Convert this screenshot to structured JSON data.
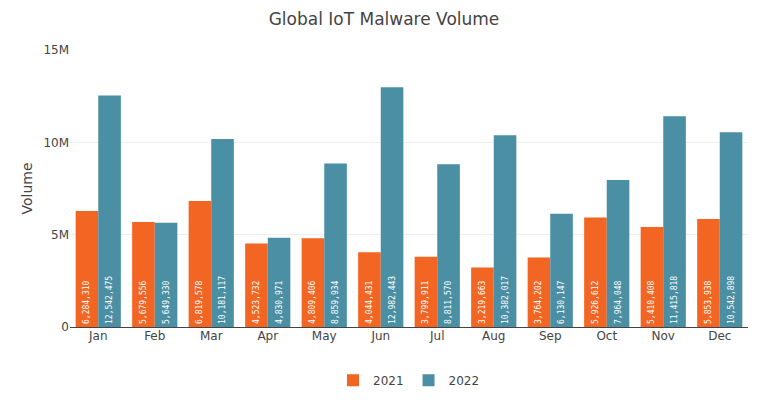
{
  "chart_data": {
    "type": "bar",
    "title": "Global IoT Malware Volume",
    "ylabel": "Volume",
    "categories": [
      "Jan",
      "Feb",
      "Mar",
      "Apr",
      "May",
      "Jun",
      "Jul",
      "Aug",
      "Sep",
      "Oct",
      "Nov",
      "Dec"
    ],
    "series": [
      {
        "name": "2021",
        "color": "#F26522",
        "values": [
          6284310,
          5679556,
          6819578,
          4523732,
          4809406,
          4044431,
          3799911,
          3219663,
          3764202,
          5926612,
          5410408,
          5853938
        ],
        "value_labels": [
          "6,284,310",
          "5,679,556",
          "6,819,578",
          "4,523,732",
          "4,809,406",
          "4,044,431",
          "3,799,911",
          "3,219,663",
          "3,764,202",
          "5,926,612",
          "5,410,408",
          "5,853,938"
        ]
      },
      {
        "name": "2022",
        "color": "#4A8FA3",
        "values": [
          12542475,
          5649330,
          10181117,
          4830971,
          8859934,
          12982443,
          8811570,
          10382017,
          6130147,
          7964048,
          11415818,
          10542898
        ],
        "value_labels": [
          "12,542,475",
          "5,649,330",
          "10,181,117",
          "4,830,971",
          "8,859,934",
          "12,982,443",
          "8,811,570",
          "10,382,017",
          "6,130,147",
          "7,964,048",
          "11,415,818",
          "10,542,898"
        ]
      }
    ],
    "ylim": [
      0,
      15000000
    ],
    "yticks": [
      0,
      {
        "value": 5000000,
        "label": "5M"
      },
      {
        "value": 10000000,
        "label": "10M"
      },
      {
        "value": 15000000,
        "label": "15M"
      }
    ],
    "grid": true,
    "legend": "bottom",
    "data_labels": true
  }
}
